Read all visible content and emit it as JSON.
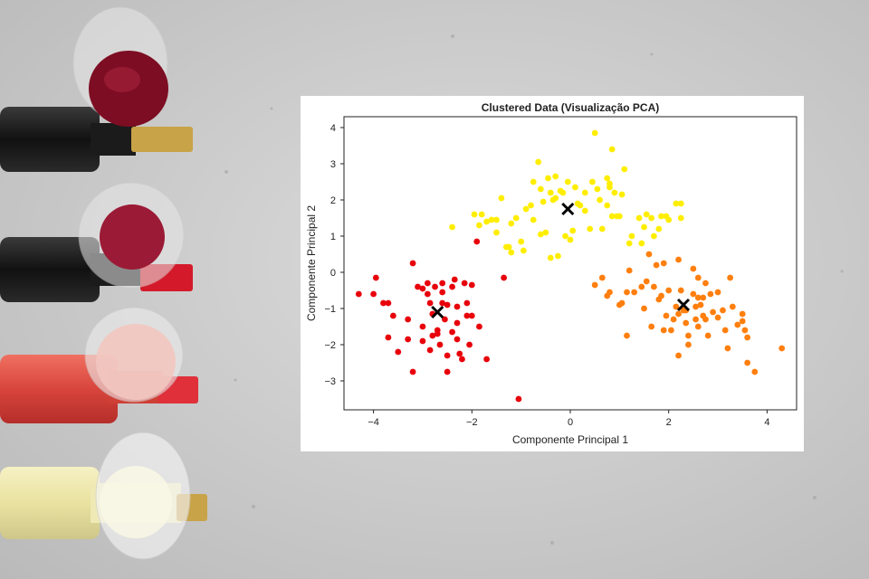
{
  "background": {
    "description_colors": {
      "surface": "#c9c9c9",
      "red_wine": "#8e1028",
      "rose_wine": "#e0554a",
      "white_wine": "#ece6a8"
    }
  },
  "chart_data": {
    "type": "scatter",
    "title": "Clustered Data (Visualização PCA)",
    "xlabel": "Componente Principal 1",
    "ylabel": "Componente Principal 2",
    "xlim": [
      -4.6,
      4.6
    ],
    "ylim": [
      -3.8,
      4.3
    ],
    "xticks": [
      -4,
      -2,
      0,
      2,
      4
    ],
    "yticks": [
      -3,
      -2,
      -1,
      0,
      1,
      2,
      3,
      4
    ],
    "grid": false,
    "colors": {
      "red": "#e8000b",
      "yellow": "#ffee00",
      "orange": "#ff7f0e",
      "centroid": "#000000"
    },
    "series": [
      {
        "color": "red",
        "points": [
          [
            -4.3,
            -0.6
          ],
          [
            -4.0,
            -0.6
          ],
          [
            -3.95,
            -0.15
          ],
          [
            -3.8,
            -0.85
          ],
          [
            -3.7,
            -0.85
          ],
          [
            -3.6,
            -1.2
          ],
          [
            -3.7,
            -1.8
          ],
          [
            -3.5,
            -2.2
          ],
          [
            -3.3,
            -1.3
          ],
          [
            -3.2,
            -2.75
          ],
          [
            -3.2,
            0.25
          ],
          [
            -3.1,
            -0.4
          ],
          [
            -3.0,
            -0.45
          ],
          [
            -3.0,
            -1.5
          ],
          [
            -3.0,
            -1.9
          ],
          [
            -2.9,
            -0.3
          ],
          [
            -2.85,
            -0.85
          ],
          [
            -2.85,
            -2.15
          ],
          [
            -2.8,
            -1.15
          ],
          [
            -2.75,
            -0.4
          ],
          [
            -2.7,
            -1.6
          ],
          [
            -2.65,
            -2.0
          ],
          [
            -2.6,
            -0.3
          ],
          [
            -2.6,
            -0.55
          ],
          [
            -2.55,
            -1.3
          ],
          [
            -2.5,
            -2.3
          ],
          [
            -2.5,
            -0.9
          ],
          [
            -2.4,
            -0.4
          ],
          [
            -2.4,
            -1.65
          ],
          [
            -2.3,
            -1.85
          ],
          [
            -2.25,
            -2.25
          ],
          [
            -2.2,
            -2.4
          ],
          [
            -2.15,
            -0.3
          ],
          [
            -2.1,
            -0.85
          ],
          [
            -2.1,
            -1.2
          ],
          [
            -2.05,
            -2.0
          ],
          [
            -2.0,
            -0.35
          ],
          [
            -2.3,
            -0.95
          ],
          [
            -2.6,
            -0.85
          ],
          [
            -2.5,
            -2.75
          ],
          [
            -2.7,
            -1.7
          ],
          [
            -1.9,
            0.85
          ],
          [
            -1.85,
            -1.5
          ],
          [
            -1.7,
            -2.4
          ],
          [
            -1.35,
            -0.15
          ],
          [
            -1.05,
            -3.5
          ],
          [
            -2.0,
            -1.2
          ],
          [
            -2.3,
            -1.4
          ],
          [
            -2.8,
            -1.75
          ],
          [
            -3.3,
            -1.85
          ],
          [
            -2.35,
            -0.2
          ],
          [
            -2.9,
            -0.6
          ]
        ]
      },
      {
        "color": "yellow",
        "points": [
          [
            -2.4,
            1.25
          ],
          [
            -1.95,
            1.6
          ],
          [
            -1.85,
            1.3
          ],
          [
            -1.8,
            1.6
          ],
          [
            -1.7,
            1.4
          ],
          [
            -1.6,
            1.45
          ],
          [
            -1.5,
            1.45
          ],
          [
            -1.5,
            1.1
          ],
          [
            -1.4,
            2.05
          ],
          [
            -1.3,
            0.7
          ],
          [
            -1.25,
            0.7
          ],
          [
            -1.2,
            1.35
          ],
          [
            -1.0,
            0.85
          ],
          [
            -0.8,
            1.85
          ],
          [
            -0.75,
            2.5
          ],
          [
            -0.65,
            3.05
          ],
          [
            -0.6,
            2.3
          ],
          [
            -0.55,
            1.95
          ],
          [
            -0.5,
            1.1
          ],
          [
            -0.45,
            2.6
          ],
          [
            -0.4,
            2.2
          ],
          [
            -0.35,
            2.0
          ],
          [
            -0.3,
            2.05
          ],
          [
            -0.3,
            2.65
          ],
          [
            -0.25,
            0.45
          ],
          [
            -0.2,
            2.25
          ],
          [
            -0.15,
            2.2
          ],
          [
            -0.1,
            1.0
          ],
          [
            -0.05,
            2.5
          ],
          [
            0.0,
            0.9
          ],
          [
            0.05,
            1.15
          ],
          [
            0.1,
            2.35
          ],
          [
            0.15,
            1.9
          ],
          [
            0.2,
            1.85
          ],
          [
            0.3,
            1.7
          ],
          [
            0.3,
            2.2
          ],
          [
            0.4,
            1.2
          ],
          [
            0.45,
            2.5
          ],
          [
            0.5,
            3.85
          ],
          [
            0.55,
            2.3
          ],
          [
            0.6,
            2.0
          ],
          [
            0.65,
            1.2
          ],
          [
            0.75,
            2.6
          ],
          [
            0.75,
            1.85
          ],
          [
            0.8,
            2.35
          ],
          [
            0.8,
            2.45
          ],
          [
            0.85,
            3.4
          ],
          [
            0.85,
            1.55
          ],
          [
            0.9,
            2.2
          ],
          [
            0.95,
            1.55
          ],
          [
            1.0,
            1.55
          ],
          [
            1.05,
            2.15
          ],
          [
            1.1,
            2.85
          ],
          [
            1.2,
            0.8
          ],
          [
            1.25,
            1.0
          ],
          [
            1.4,
            1.5
          ],
          [
            1.45,
            0.8
          ],
          [
            1.5,
            1.25
          ],
          [
            1.55,
            1.6
          ],
          [
            1.65,
            1.5
          ],
          [
            1.7,
            1.0
          ],
          [
            1.8,
            1.2
          ],
          [
            1.85,
            1.55
          ],
          [
            1.95,
            1.55
          ],
          [
            2.0,
            1.45
          ],
          [
            2.15,
            1.9
          ],
          [
            2.25,
            1.5
          ],
          [
            2.25,
            1.9
          ],
          [
            -0.75,
            1.45
          ],
          [
            -0.9,
            1.75
          ],
          [
            -1.1,
            1.5
          ],
          [
            -0.95,
            0.6
          ],
          [
            -0.4,
            0.4
          ],
          [
            -0.6,
            1.05
          ],
          [
            -1.2,
            0.55
          ]
        ]
      },
      {
        "color": "orange",
        "points": [
          [
            0.5,
            -0.35
          ],
          [
            0.65,
            -0.15
          ],
          [
            0.75,
            -0.65
          ],
          [
            0.8,
            -0.55
          ],
          [
            1.0,
            -0.9
          ],
          [
            1.05,
            -0.85
          ],
          [
            1.15,
            -0.55
          ],
          [
            1.15,
            -1.75
          ],
          [
            1.2,
            0.05
          ],
          [
            1.3,
            -0.55
          ],
          [
            1.45,
            -0.4
          ],
          [
            1.5,
            -1.0
          ],
          [
            1.55,
            -0.25
          ],
          [
            1.6,
            0.5
          ],
          [
            1.7,
            -0.4
          ],
          [
            1.75,
            0.2
          ],
          [
            1.8,
            -0.75
          ],
          [
            1.85,
            -0.65
          ],
          [
            1.9,
            -1.6
          ],
          [
            1.95,
            -1.2
          ],
          [
            2.0,
            -0.5
          ],
          [
            2.05,
            -1.6
          ],
          [
            2.1,
            -1.3
          ],
          [
            2.15,
            -0.95
          ],
          [
            2.2,
            -1.15
          ],
          [
            2.2,
            -2.3
          ],
          [
            2.25,
            -0.5
          ],
          [
            2.3,
            -1.05
          ],
          [
            2.35,
            -1.4
          ],
          [
            2.4,
            -1.75
          ],
          [
            2.5,
            -0.6
          ],
          [
            2.55,
            -1.3
          ],
          [
            2.6,
            -0.15
          ],
          [
            2.6,
            -1.5
          ],
          [
            2.65,
            -0.9
          ],
          [
            2.7,
            -0.7
          ],
          [
            2.7,
            -1.2
          ],
          [
            2.75,
            -1.3
          ],
          [
            2.8,
            -1.75
          ],
          [
            2.85,
            -0.6
          ],
          [
            2.9,
            -1.1
          ],
          [
            3.0,
            -0.55
          ],
          [
            3.1,
            -1.05
          ],
          [
            3.15,
            -1.6
          ],
          [
            3.2,
            -2.1
          ],
          [
            3.25,
            -0.15
          ],
          [
            3.3,
            -0.95
          ],
          [
            3.4,
            -1.45
          ],
          [
            3.5,
            -1.15
          ],
          [
            3.5,
            -1.35
          ],
          [
            3.55,
            -1.6
          ],
          [
            3.6,
            -1.8
          ],
          [
            3.6,
            -2.5
          ],
          [
            3.75,
            -2.75
          ],
          [
            4.3,
            -2.1
          ],
          [
            2.5,
            0.1
          ],
          [
            2.6,
            -0.7
          ],
          [
            2.2,
            0.35
          ],
          [
            1.9,
            0.25
          ],
          [
            2.4,
            -2.0
          ],
          [
            3.0,
            -1.25
          ],
          [
            1.65,
            -1.5
          ],
          [
            2.75,
            -0.3
          ],
          [
            2.35,
            -1.05
          ],
          [
            2.55,
            -0.95
          ]
        ]
      }
    ],
    "centroids": [
      [
        -2.7,
        -1.1
      ],
      [
        -0.05,
        1.75
      ],
      [
        2.3,
        -0.9
      ]
    ]
  }
}
